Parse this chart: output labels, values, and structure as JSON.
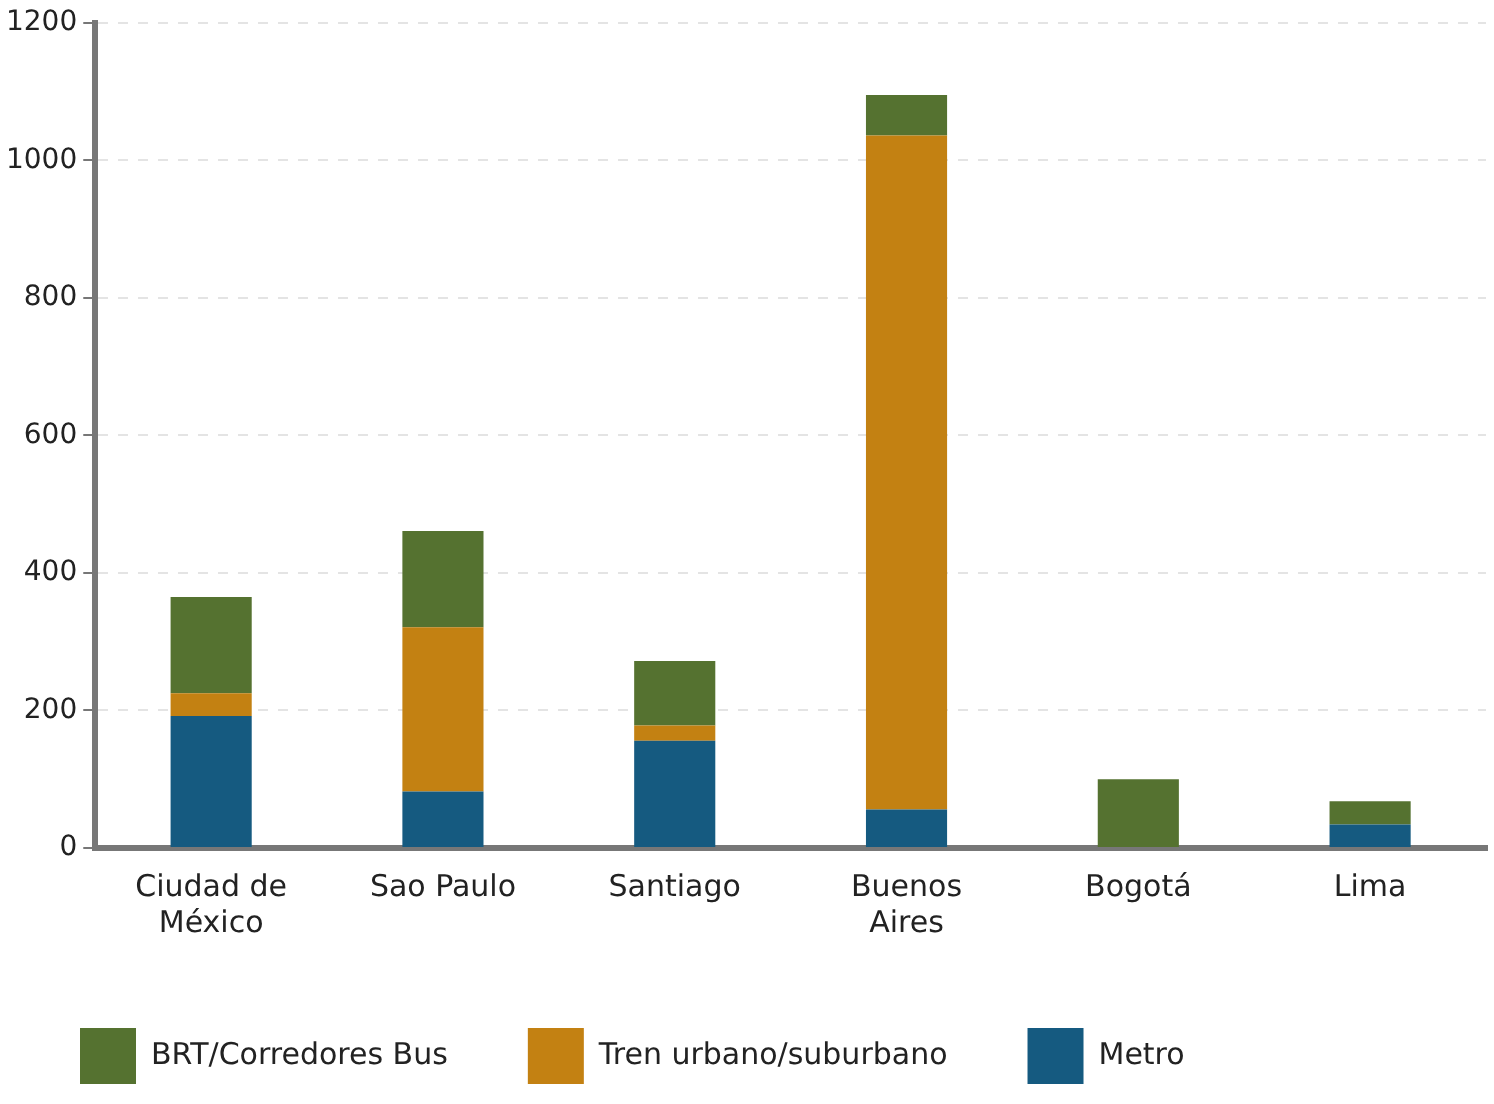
{
  "chart_data": {
    "type": "bar",
    "stacked": true,
    "categories": [
      "Ciudad de México",
      "Sao Paulo",
      "Santiago",
      "Buenos Aires",
      "Bogotá",
      "Lima"
    ],
    "series": [
      {
        "name": "Metro",
        "color": "#155a80",
        "values": [
          192,
          82,
          156,
          56,
          0,
          34
        ]
      },
      {
        "name": "Tren urbano/suburbano",
        "color": "#c38112",
        "values": [
          33,
          239,
          22,
          980,
          0,
          0
        ]
      },
      {
        "name": "BRT/Corredores Bus",
        "color": "#557230",
        "values": [
          140,
          140,
          94,
          59,
          100,
          34
        ]
      }
    ],
    "ylim": [
      0,
      1200
    ],
    "yticks": [
      0,
      200,
      400,
      600,
      800,
      1000,
      1200
    ],
    "grid": "y",
    "legend": "bottom"
  }
}
